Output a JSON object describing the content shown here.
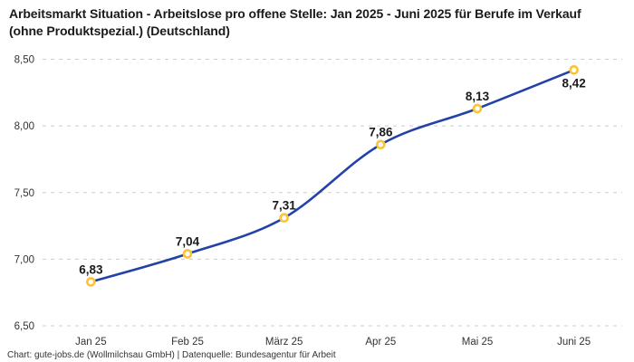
{
  "footer": "Chart: gute-jobs.de (Wollmilchsau GmbH) | Datenquelle: Bundesagentur für Arbeit",
  "chart_data": {
    "type": "line",
    "title": "Arbeitsmarkt Situation - Arbeitslose pro offene Stelle: Jan 2025 - Juni 2025 für Berufe im Verkauf (ohne Produktspezial.) (Deutschland)",
    "categories": [
      "Jan 25",
      "Feb 25",
      "März 25",
      "Apr 25",
      "Mai 25",
      "Juni 25"
    ],
    "values": [
      6.83,
      7.04,
      7.31,
      7.86,
      8.13,
      8.42
    ],
    "value_labels": [
      "6,83",
      "7,04",
      "7,31",
      "7,86",
      "8,13",
      "8,42"
    ],
    "y_tick_values": [
      6.5,
      7.0,
      7.5,
      8.0,
      8.5
    ],
    "y_tick_labels": [
      "6,50",
      "7,00",
      "7,50",
      "8,00",
      "8,50"
    ],
    "ylim": [
      6.5,
      8.5
    ],
    "xlabel": "",
    "ylabel": "",
    "grid": "horizontal-dashed",
    "legend": "none",
    "smooth": true,
    "last_label_position": "below",
    "colors": {
      "line": "#2342a8",
      "marker_ring": "#fcc332",
      "marker_fill": "#ffffff",
      "grid": "#cccccc",
      "tick_text": "#333333",
      "label_text": "#1a1a1a"
    }
  }
}
